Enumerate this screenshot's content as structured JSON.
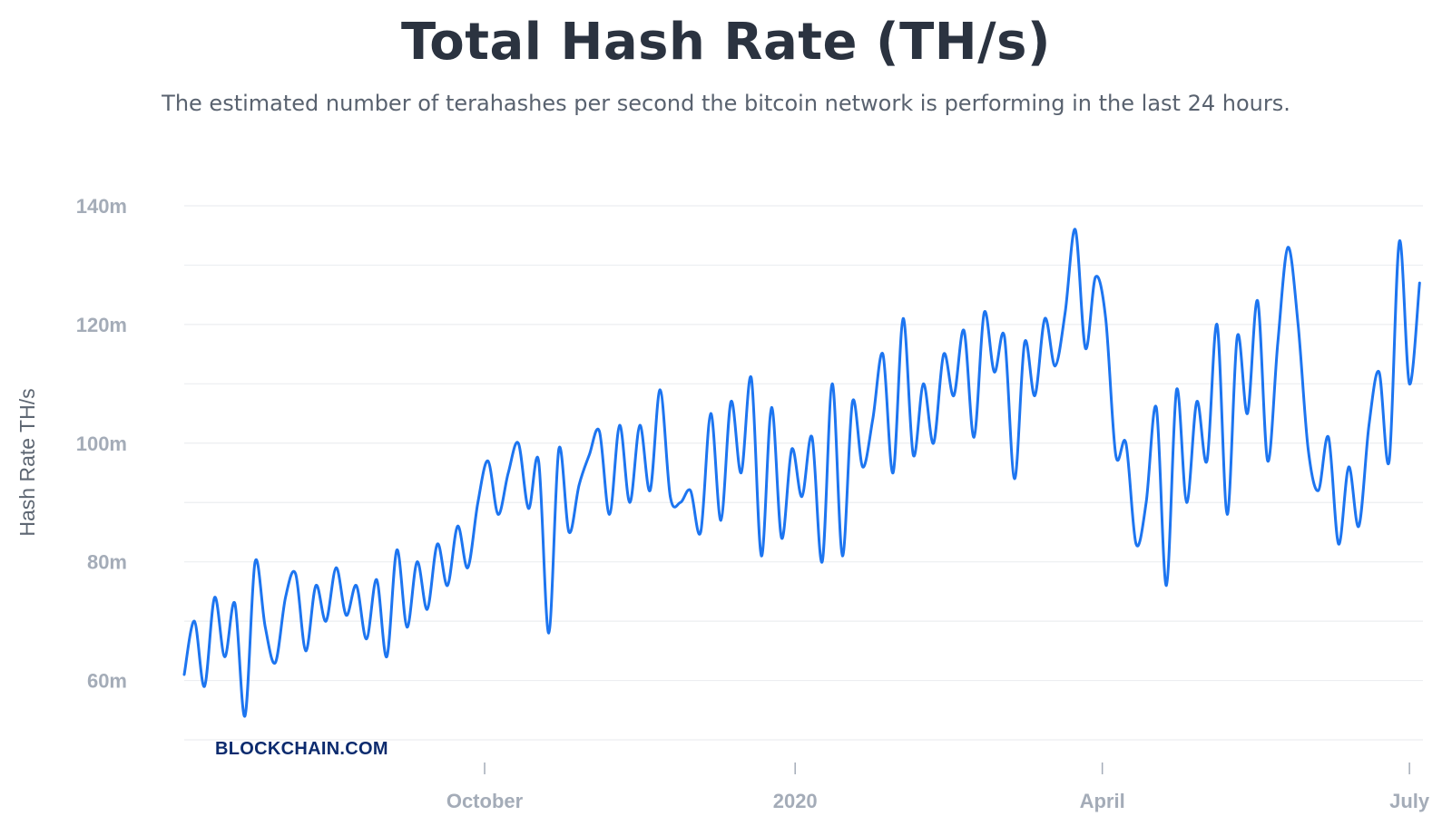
{
  "chart_data": {
    "type": "line",
    "title": "Total Hash Rate (TH/s)",
    "subtitle": "The estimated number of terahashes per second the bitcoin network is performing in the last 24 hours.",
    "ylabel": "Hash Rate TH/s",
    "xlabel": "",
    "ylim": [
      50000000,
      140000000
    ],
    "y_ticks": [
      {
        "value": 60000000,
        "label": "60m"
      },
      {
        "value": 80000000,
        "label": "80m"
      },
      {
        "value": 100000000,
        "label": "100m"
      },
      {
        "value": 120000000,
        "label": "120m"
      },
      {
        "value": 140000000,
        "label": "140m"
      }
    ],
    "x_range": [
      "2019-07-04",
      "2020-07-05"
    ],
    "x_ticks": [
      {
        "date": "2019-10-01",
        "label": "October"
      },
      {
        "date": "2020-01-01",
        "label": "2020"
      },
      {
        "date": "2020-04-01",
        "label": "April"
      },
      {
        "date": "2020-07-01",
        "label": "July"
      }
    ],
    "grid": true,
    "legend": "none",
    "watermark": "BLOCKCHAIN.COM",
    "colors": {
      "line": "#1d75f0",
      "title": "#2b3340"
    },
    "series": [
      {
        "x": [
          "2019-07-04",
          "2019-07-07",
          "2019-07-10",
          "2019-07-13",
          "2019-07-16",
          "2019-07-19",
          "2019-07-22",
          "2019-07-25",
          "2019-07-28",
          "2019-07-31",
          "2019-08-03",
          "2019-08-06",
          "2019-08-09",
          "2019-08-12",
          "2019-08-15",
          "2019-08-18",
          "2019-08-21",
          "2019-08-24",
          "2019-08-27",
          "2019-08-30",
          "2019-09-02",
          "2019-09-05",
          "2019-09-08",
          "2019-09-11",
          "2019-09-14",
          "2019-09-17",
          "2019-09-20",
          "2019-09-23",
          "2019-09-26",
          "2019-09-29",
          "2019-10-02",
          "2019-10-05",
          "2019-10-08",
          "2019-10-11",
          "2019-10-14",
          "2019-10-17",
          "2019-10-20",
          "2019-10-23",
          "2019-10-26",
          "2019-10-29",
          "2019-11-01",
          "2019-11-04",
          "2019-11-07",
          "2019-11-10",
          "2019-11-13",
          "2019-11-16",
          "2019-11-19",
          "2019-11-22",
          "2019-11-25",
          "2019-11-28",
          "2019-12-01",
          "2019-12-04",
          "2019-12-07",
          "2019-12-10",
          "2019-12-13",
          "2019-12-16",
          "2019-12-19",
          "2019-12-22",
          "2019-12-25",
          "2019-12-28",
          "2019-12-31",
          "2020-01-03",
          "2020-01-06",
          "2020-01-09",
          "2020-01-12",
          "2020-01-15",
          "2020-01-18",
          "2020-01-21",
          "2020-01-24",
          "2020-01-27",
          "2020-01-30",
          "2020-02-02",
          "2020-02-05",
          "2020-02-08",
          "2020-02-11",
          "2020-02-14",
          "2020-02-17",
          "2020-02-20",
          "2020-02-23",
          "2020-02-26",
          "2020-02-29",
          "2020-03-03",
          "2020-03-06",
          "2020-03-09",
          "2020-03-12",
          "2020-03-15",
          "2020-03-18",
          "2020-03-21",
          "2020-03-24",
          "2020-03-27",
          "2020-03-30",
          "2020-04-02",
          "2020-04-05",
          "2020-04-08",
          "2020-04-11",
          "2020-04-14",
          "2020-04-17",
          "2020-04-20",
          "2020-04-23",
          "2020-04-26",
          "2020-04-29",
          "2020-05-02",
          "2020-05-05",
          "2020-05-08",
          "2020-05-11",
          "2020-05-14",
          "2020-05-17",
          "2020-05-20",
          "2020-05-23",
          "2020-05-26",
          "2020-05-29",
          "2020-06-01",
          "2020-06-04",
          "2020-06-07",
          "2020-06-10",
          "2020-06-13",
          "2020-06-16",
          "2020-06-19",
          "2020-06-22",
          "2020-06-25",
          "2020-06-28",
          "2020-07-01",
          "2020-07-04"
        ],
        "values": [
          61000000,
          70000000,
          59000000,
          74000000,
          64000000,
          73000000,
          54000000,
          80000000,
          69000000,
          63000000,
          74000000,
          78000000,
          65000000,
          76000000,
          70000000,
          79000000,
          71000000,
          76000000,
          67000000,
          77000000,
          64000000,
          82000000,
          69000000,
          80000000,
          72000000,
          83000000,
          76000000,
          86000000,
          79000000,
          90000000,
          97000000,
          88000000,
          95000000,
          100000000,
          89000000,
          97000000,
          68000000,
          99000000,
          85000000,
          93000000,
          98000000,
          102000000,
          88000000,
          103000000,
          90000000,
          103000000,
          92000000,
          109000000,
          91000000,
          90000000,
          92000000,
          85000000,
          105000000,
          87000000,
          107000000,
          95000000,
          111000000,
          81000000,
          106000000,
          84000000,
          99000000,
          91000000,
          101000000,
          80000000,
          110000000,
          81000000,
          107000000,
          96000000,
          104000000,
          115000000,
          95000000,
          121000000,
          98000000,
          110000000,
          100000000,
          115000000,
          108000000,
          119000000,
          101000000,
          122000000,
          112000000,
          118000000,
          94000000,
          117000000,
          108000000,
          121000000,
          113000000,
          122000000,
          136000000,
          116000000,
          128000000,
          121000000,
          98000000,
          100000000,
          83000000,
          90000000,
          106000000,
          76000000,
          109000000,
          90000000,
          107000000,
          97000000,
          120000000,
          88000000,
          118000000,
          105000000,
          124000000,
          97000000,
          117000000,
          133000000,
          120000000,
          99000000,
          92000000,
          101000000,
          83000000,
          96000000,
          86000000,
          103000000,
          112000000,
          97000000,
          134000000,
          110000000,
          127000000
        ]
      }
    ]
  }
}
